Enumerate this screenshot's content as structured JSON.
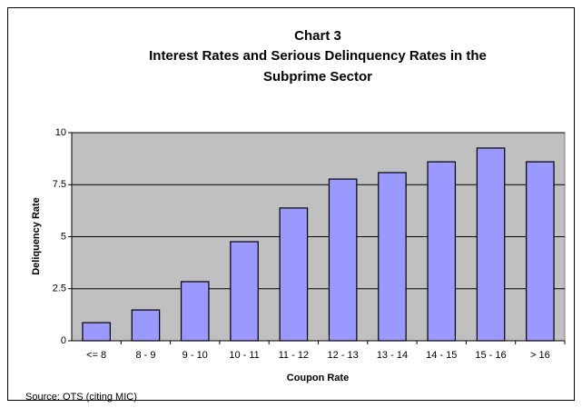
{
  "chart_data": {
    "type": "bar",
    "title": [
      "Chart 3",
      "Interest Rates and Serious Delinquency Rates in the",
      "Subprime Sector"
    ],
    "categories": [
      "<= 8",
      "8 - 9",
      "9 - 10",
      "10 - 11",
      "11 - 12",
      "12 - 13",
      "13 - 14",
      "14 - 15",
      "15 - 16",
      "> 16"
    ],
    "values": [
      0.87,
      1.48,
      2.84,
      4.76,
      6.38,
      7.77,
      8.08,
      8.6,
      9.26,
      8.6
    ],
    "color": "#9999ff",
    "ylim": [
      0,
      10
    ],
    "yticks": [
      0,
      2.5,
      5,
      7.5,
      10
    ],
    "grid": true,
    "ylabel": "Deliquency Rate",
    "xlabel": "Coupon Rate",
    "source": "Source: OTS (citing MIC)"
  }
}
